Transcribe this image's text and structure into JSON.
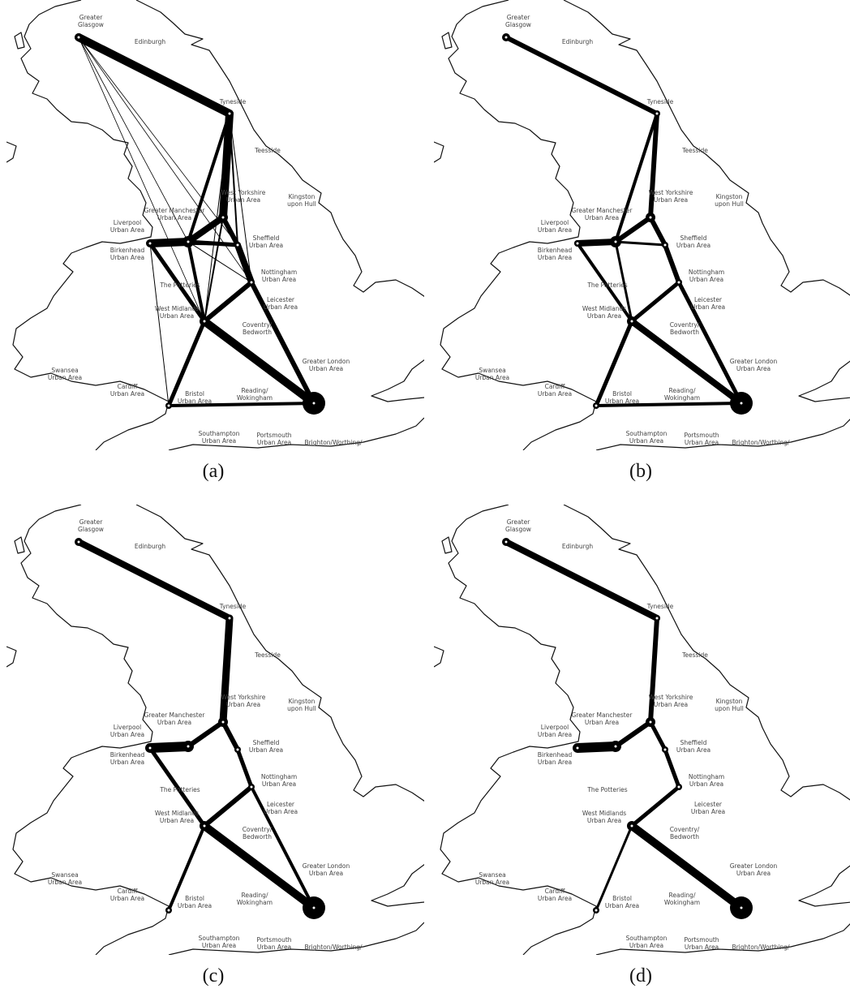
{
  "panels": [
    {
      "caption": "(a)"
    },
    {
      "caption": "(b)"
    },
    {
      "caption": "(c)"
    },
    {
      "caption": "(d)"
    }
  ],
  "places": [
    {
      "lines": [
        "Greater",
        "Glasgow"
      ]
    },
    {
      "lines": [
        "Edinburgh"
      ]
    },
    {
      "lines": [
        "Tyneside"
      ]
    },
    {
      "lines": [
        "Teesside"
      ]
    },
    {
      "lines": [
        "West Yorkshire",
        "Urban Area"
      ]
    },
    {
      "lines": [
        "Kingston",
        "upon Hull"
      ]
    },
    {
      "lines": [
        "Greater Manchester",
        "Urban Area"
      ]
    },
    {
      "lines": [
        "Liverpool",
        "Urban Area"
      ]
    },
    {
      "lines": [
        "Sheffield",
        "Urban Area"
      ]
    },
    {
      "lines": [
        "Birkenhead",
        "Urban Area"
      ]
    },
    {
      "lines": [
        "Nottingham",
        "Urban Area"
      ]
    },
    {
      "lines": [
        "The Potteries"
      ]
    },
    {
      "lines": [
        "Leicester",
        "Urban Area"
      ]
    },
    {
      "lines": [
        "West Midlands",
        "Urban Area"
      ]
    },
    {
      "lines": [
        "Coventry/",
        "Bedworth"
      ]
    },
    {
      "lines": [
        "Greater London",
        "Urban Area"
      ]
    },
    {
      "lines": [
        "Swansea",
        "Urban Area"
      ]
    },
    {
      "lines": [
        "Cardiff",
        "Urban Area"
      ]
    },
    {
      "lines": [
        "Bristol",
        "Urban Area"
      ]
    },
    {
      "lines": [
        "Reading/",
        "Wokingham"
      ]
    },
    {
      "lines": [
        "Southampton",
        "Urban Area"
      ]
    },
    {
      "lines": [
        "Portsmouth",
        "Urban Area"
      ]
    },
    {
      "lines": [
        "Brighton/Worthing/"
      ]
    }
  ]
}
